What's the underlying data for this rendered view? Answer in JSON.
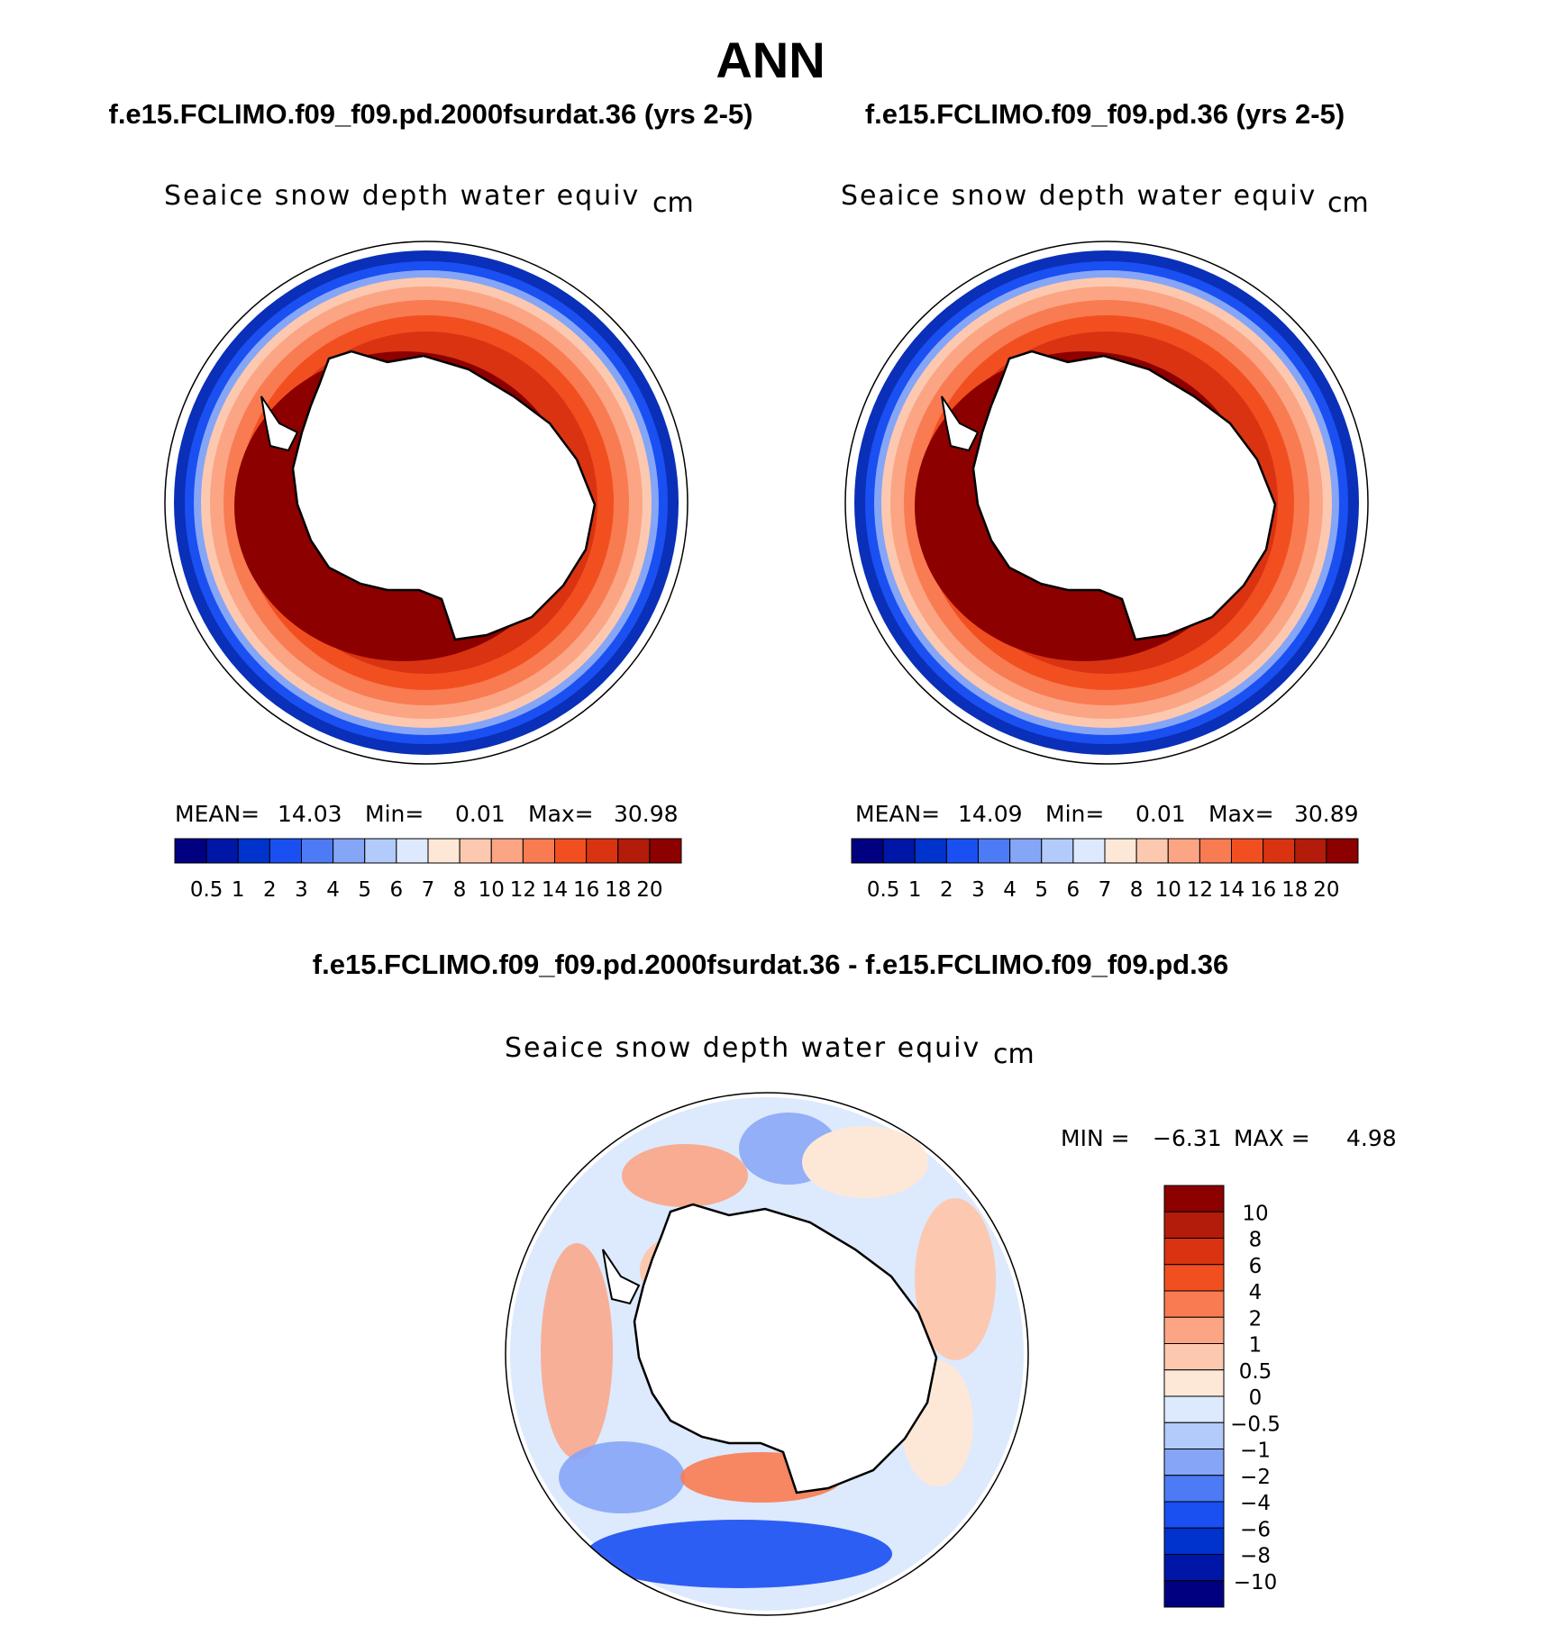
{
  "figure_title": "ANN",
  "colors": {
    "abs_scale": [
      "#000080",
      "#0016a6",
      "#0033cc",
      "#1a4ff2",
      "#4d7af5",
      "#85a5f7",
      "#b3cbfb",
      "#dde9fd",
      "#fde8d8",
      "#fcc9b0",
      "#fba585",
      "#f97b52",
      "#f24f21",
      "#d93312",
      "#b31c0a",
      "#8c0000"
    ],
    "diff_scale": [
      "#000080",
      "#0016a6",
      "#0033cc",
      "#1a4ff2",
      "#4d7af5",
      "#85a5f7",
      "#b3cbfb",
      "#dde9fd",
      "#fde8d8",
      "#fcc9b0",
      "#fba585",
      "#f97b52",
      "#f24f21",
      "#d93312",
      "#b31c0a",
      "#8c0000"
    ]
  },
  "chart_data": [
    {
      "type": "heatmap",
      "projection": "south-polar-stereographic",
      "case_title": "f.e15.FCLIMO.f09_f09.pd.2000fsurdat.36 (yrs 2-5)",
      "variable": "Seaice snow depth water equiv",
      "units": "cm",
      "stats": {
        "mean_label": "MEAN=",
        "mean": "14.03",
        "min_label": "Min=",
        "min": "0.01",
        "max_label": "Max=",
        "max": "30.98"
      },
      "colorbar_levels": [
        "0.5",
        "1",
        "2",
        "3",
        "4",
        "5",
        "6",
        "7",
        "8",
        "10",
        "12",
        "14",
        "16",
        "18",
        "20"
      ]
    },
    {
      "type": "heatmap",
      "projection": "south-polar-stereographic",
      "case_title": "f.e15.FCLIMO.f09_f09.pd.36 (yrs 2-5)",
      "variable": "Seaice snow depth water equiv",
      "units": "cm",
      "stats": {
        "mean_label": "MEAN=",
        "mean": "14.09",
        "min_label": "Min=",
        "min": "0.01",
        "max_label": "Max=",
        "max": "30.89"
      },
      "colorbar_levels": [
        "0.5",
        "1",
        "2",
        "3",
        "4",
        "5",
        "6",
        "7",
        "8",
        "10",
        "12",
        "14",
        "16",
        "18",
        "20"
      ]
    },
    {
      "type": "heatmap",
      "projection": "south-polar-stereographic",
      "case_title": "f.e15.FCLIMO.f09_f09.pd.2000fsurdat.36 - f.e15.FCLIMO.f09_f09.pd.36",
      "variable": "Seaice snow depth water equiv",
      "units": "cm",
      "stats": {
        "min_label": "MIN =",
        "min": "−6.31",
        "max_label": "MAX =",
        "max": "4.98"
      },
      "colorbar_levels": [
        "10",
        "8",
        "6",
        "4",
        "2",
        "1",
        "0.5",
        "0",
        "−0.5",
        "−1",
        "−2",
        "−4",
        "−6",
        "−8",
        "−10"
      ]
    }
  ]
}
